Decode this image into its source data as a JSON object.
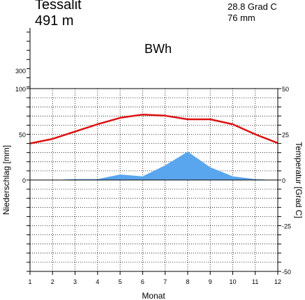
{
  "header": {
    "station": "Tessalit",
    "elevation": "491 m",
    "mean_temperature": "28.8 Grad C",
    "annual_precipitation": "76 mm",
    "climate_class": "BWh"
  },
  "chart_data": {
    "type": "line",
    "title": "",
    "xlabel": "Monat",
    "ylabel_left": "Niederschlag [mm]",
    "ylabel_right": "Temperatur [Grad C]",
    "x": [
      1,
      2,
      3,
      4,
      5,
      6,
      7,
      8,
      9,
      10,
      11,
      12
    ],
    "x_ticks": [
      "1",
      "2",
      "3",
      "4",
      "5",
      "6",
      "7",
      "8",
      "9",
      "10",
      "11",
      "12"
    ],
    "left_axis": {
      "ylim": [
        -100,
        100
      ],
      "ticks": [
        100,
        50,
        0
      ],
      "extra_ticks": [
        300
      ]
    },
    "right_axis": {
      "ylim": [
        -50,
        50
      ],
      "ticks": [
        50,
        25,
        0,
        -25,
        -50
      ]
    },
    "grid": true,
    "series": [
      {
        "kind": "area",
        "axis": "left",
        "color": "#5aa6ee",
        "values": [
          0,
          0,
          1,
          1,
          6,
          4,
          16,
          31,
          14,
          4,
          1,
          0
        ]
      },
      {
        "kind": "line",
        "axis": "right",
        "color": "#dd1111",
        "values": [
          20.0,
          22.5,
          26.5,
          30.5,
          34.0,
          35.8,
          35.2,
          33.2,
          33.2,
          30.5,
          25.0,
          20.2
        ]
      }
    ]
  }
}
